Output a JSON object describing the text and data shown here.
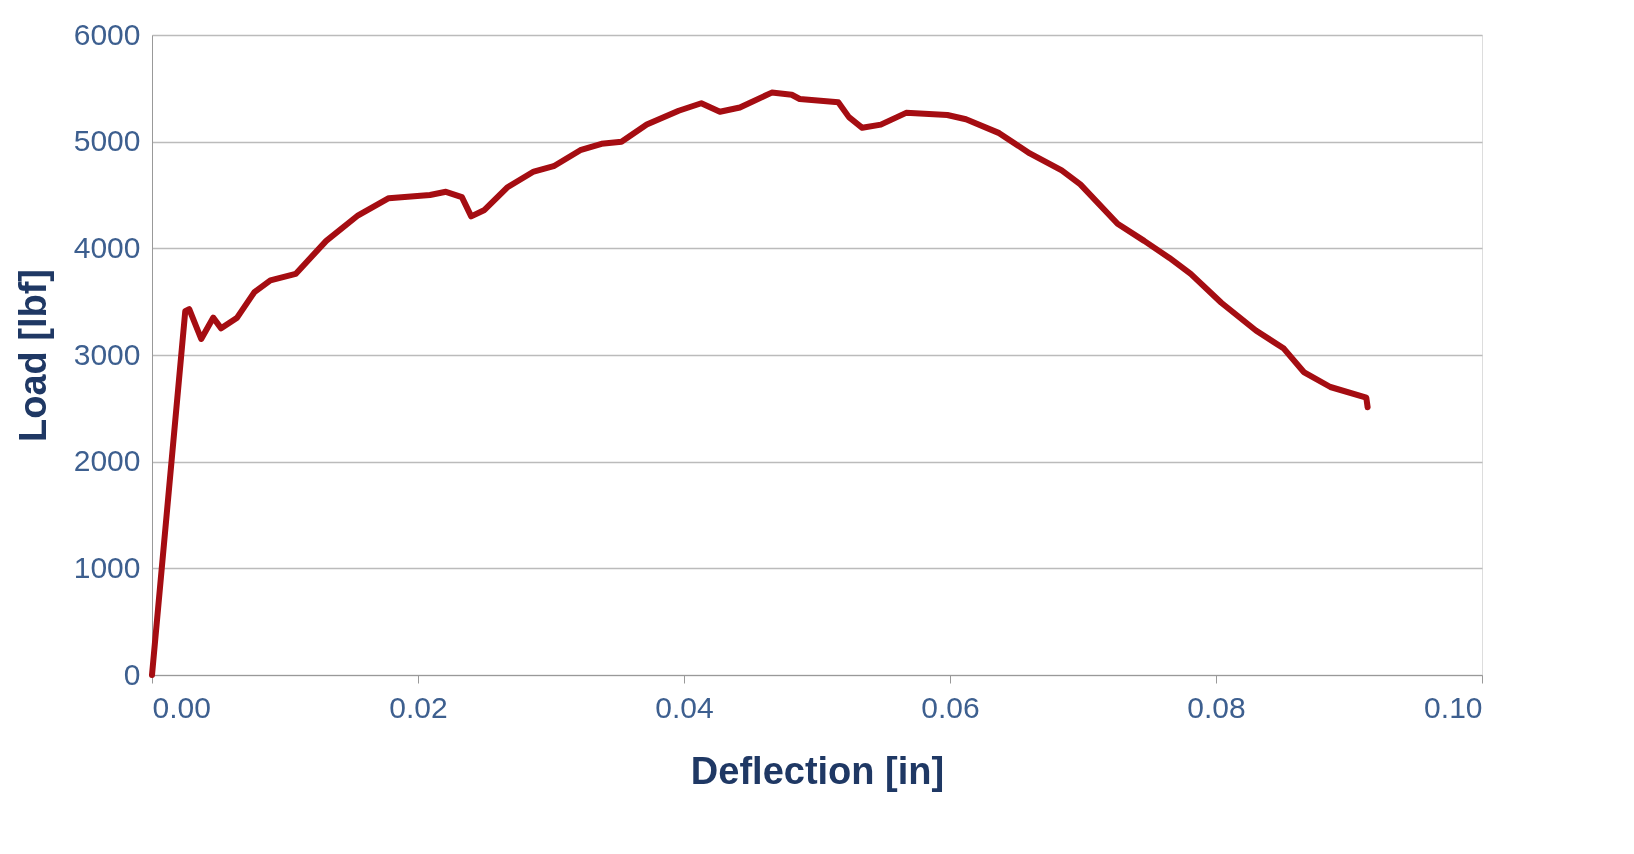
{
  "chart_data": {
    "type": "line",
    "xlabel": "Deflection [in]",
    "ylabel": "Load [lbf]",
    "xlim": [
      0,
      0.1
    ],
    "xticks": [
      {
        "value": 0,
        "label": "0.00"
      },
      {
        "value": 0.02,
        "label": "0.02"
      },
      {
        "value": 0.04,
        "label": "0.04"
      },
      {
        "value": 0.06,
        "label": "0.06"
      },
      {
        "value": 0.08,
        "label": "0.08"
      },
      {
        "value": 0.1,
        "label": "0.10"
      }
    ],
    "ylim": [
      0,
      6000
    ],
    "yticks": [
      0,
      1000,
      2000,
      3000,
      4000,
      5000,
      6000
    ],
    "grid": "y",
    "marker": "none",
    "line_style": "solid",
    "series": [
      {
        "color": "#a50d12",
        "x": [
          0,
          0.0025,
          0.0028,
          0.0037,
          0.0046,
          0.0052,
          0.0064,
          0.0077,
          0.0089,
          0.0108,
          0.0131,
          0.0155,
          0.0178,
          0.0209,
          0.0221,
          0.0233,
          0.024,
          0.025,
          0.0267,
          0.0287,
          0.0302,
          0.0322,
          0.0338,
          0.0353,
          0.0372,
          0.0396,
          0.0413,
          0.0427,
          0.0442,
          0.0466,
          0.0481,
          0.0487,
          0.0516,
          0.0524,
          0.0534,
          0.0548,
          0.0567,
          0.0598,
          0.0612,
          0.0637,
          0.066,
          0.0684,
          0.0698,
          0.0726,
          0.0746,
          0.0765,
          0.0781,
          0.0804,
          0.083,
          0.0851,
          0.0866,
          0.0886,
          0.0913,
          0.0914
        ],
        "values": [
          0,
          3410,
          3430,
          3150,
          3350,
          3250,
          3350,
          3590,
          3700,
          3760,
          4070,
          4310,
          4470,
          4500,
          4530,
          4480,
          4300,
          4360,
          4570,
          4720,
          4770,
          4920,
          4980,
          5000,
          5160,
          5290,
          5360,
          5280,
          5320,
          5460,
          5440,
          5400,
          5370,
          5230,
          5130,
          5160,
          5270,
          5250,
          5210,
          5080,
          4890,
          4730,
          4600,
          4230,
          4070,
          3910,
          3760,
          3490,
          3230,
          3060,
          2840,
          2700,
          2600,
          2510
        ]
      }
    ]
  }
}
